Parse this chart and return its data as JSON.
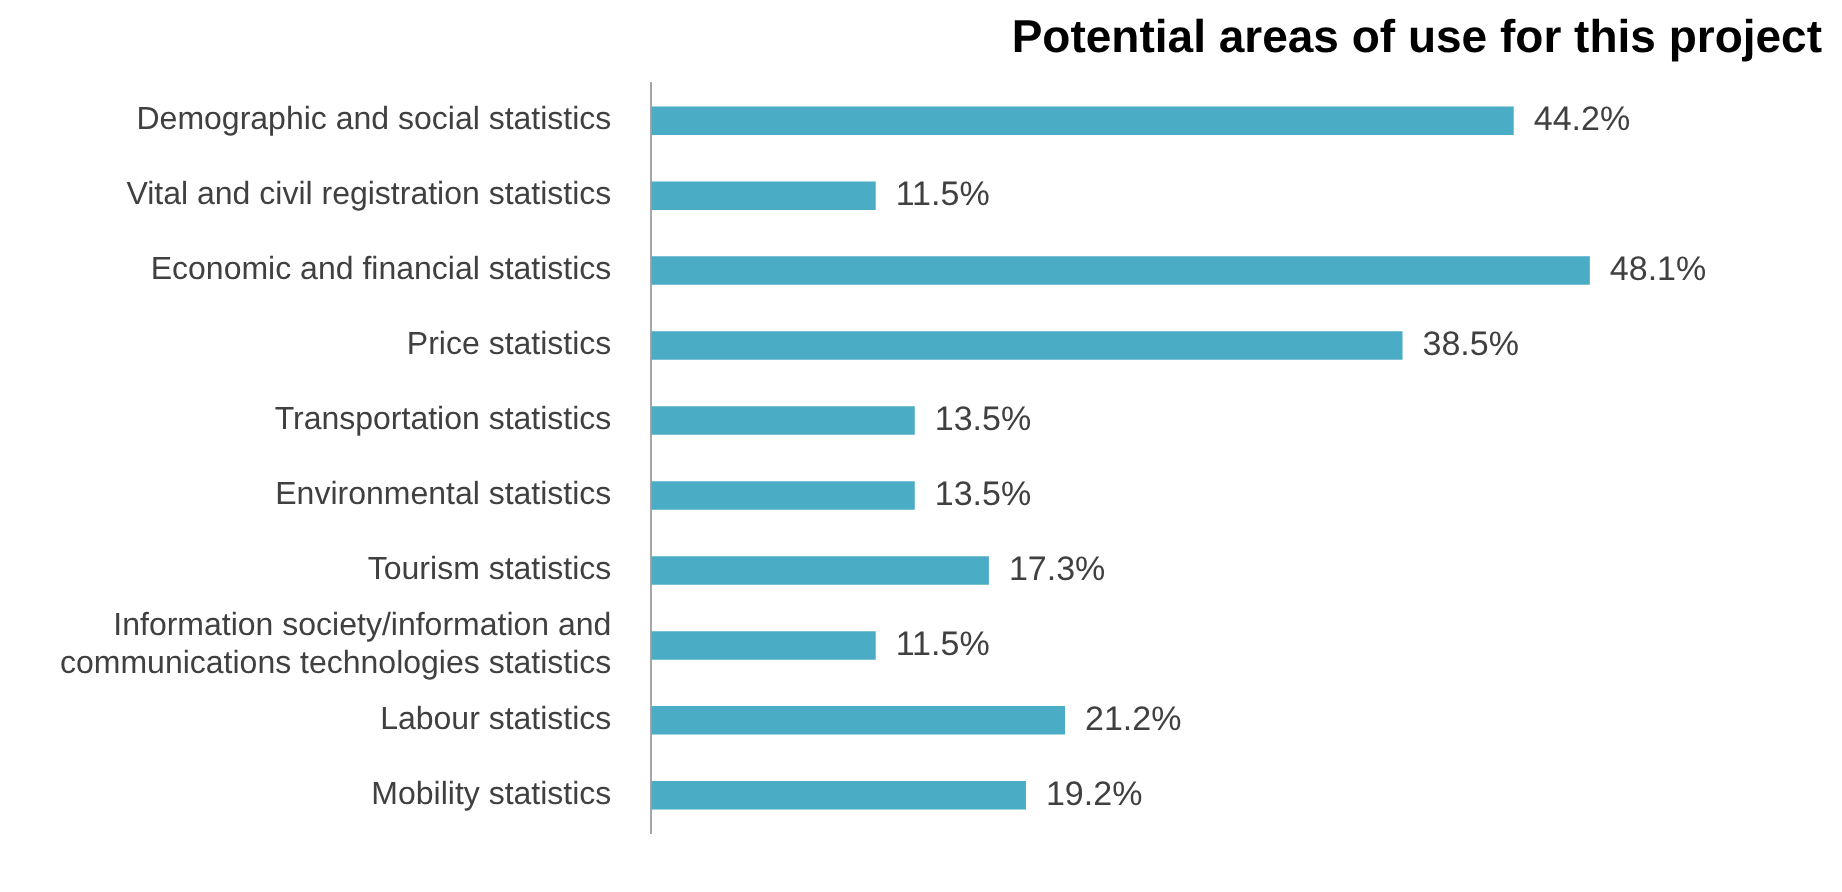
{
  "chart_data": {
    "type": "bar",
    "orientation": "horizontal",
    "title": "Potential areas of use for this project",
    "categories": [
      "Demographic and social statistics",
      "Vital and civil registration statistics",
      "Economic and financial statistics",
      "Price statistics",
      "Transportation statistics",
      "Environmental statistics",
      "Tourism statistics",
      "Information society/information and communications technologies statistics",
      "Labour statistics",
      "Mobility statistics"
    ],
    "values": [
      44.2,
      11.5,
      48.1,
      38.5,
      13.5,
      13.5,
      17.3,
      11.5,
      21.2,
      19.2
    ],
    "value_labels": [
      "44.2%",
      "11.5%",
      "48.1%",
      "38.5%",
      "13.5%",
      "13.5%",
      "17.3%",
      "11.5%",
      "21.2%",
      "19.2%"
    ],
    "color": "#4bacc6",
    "grid": false,
    "legend": false
  }
}
